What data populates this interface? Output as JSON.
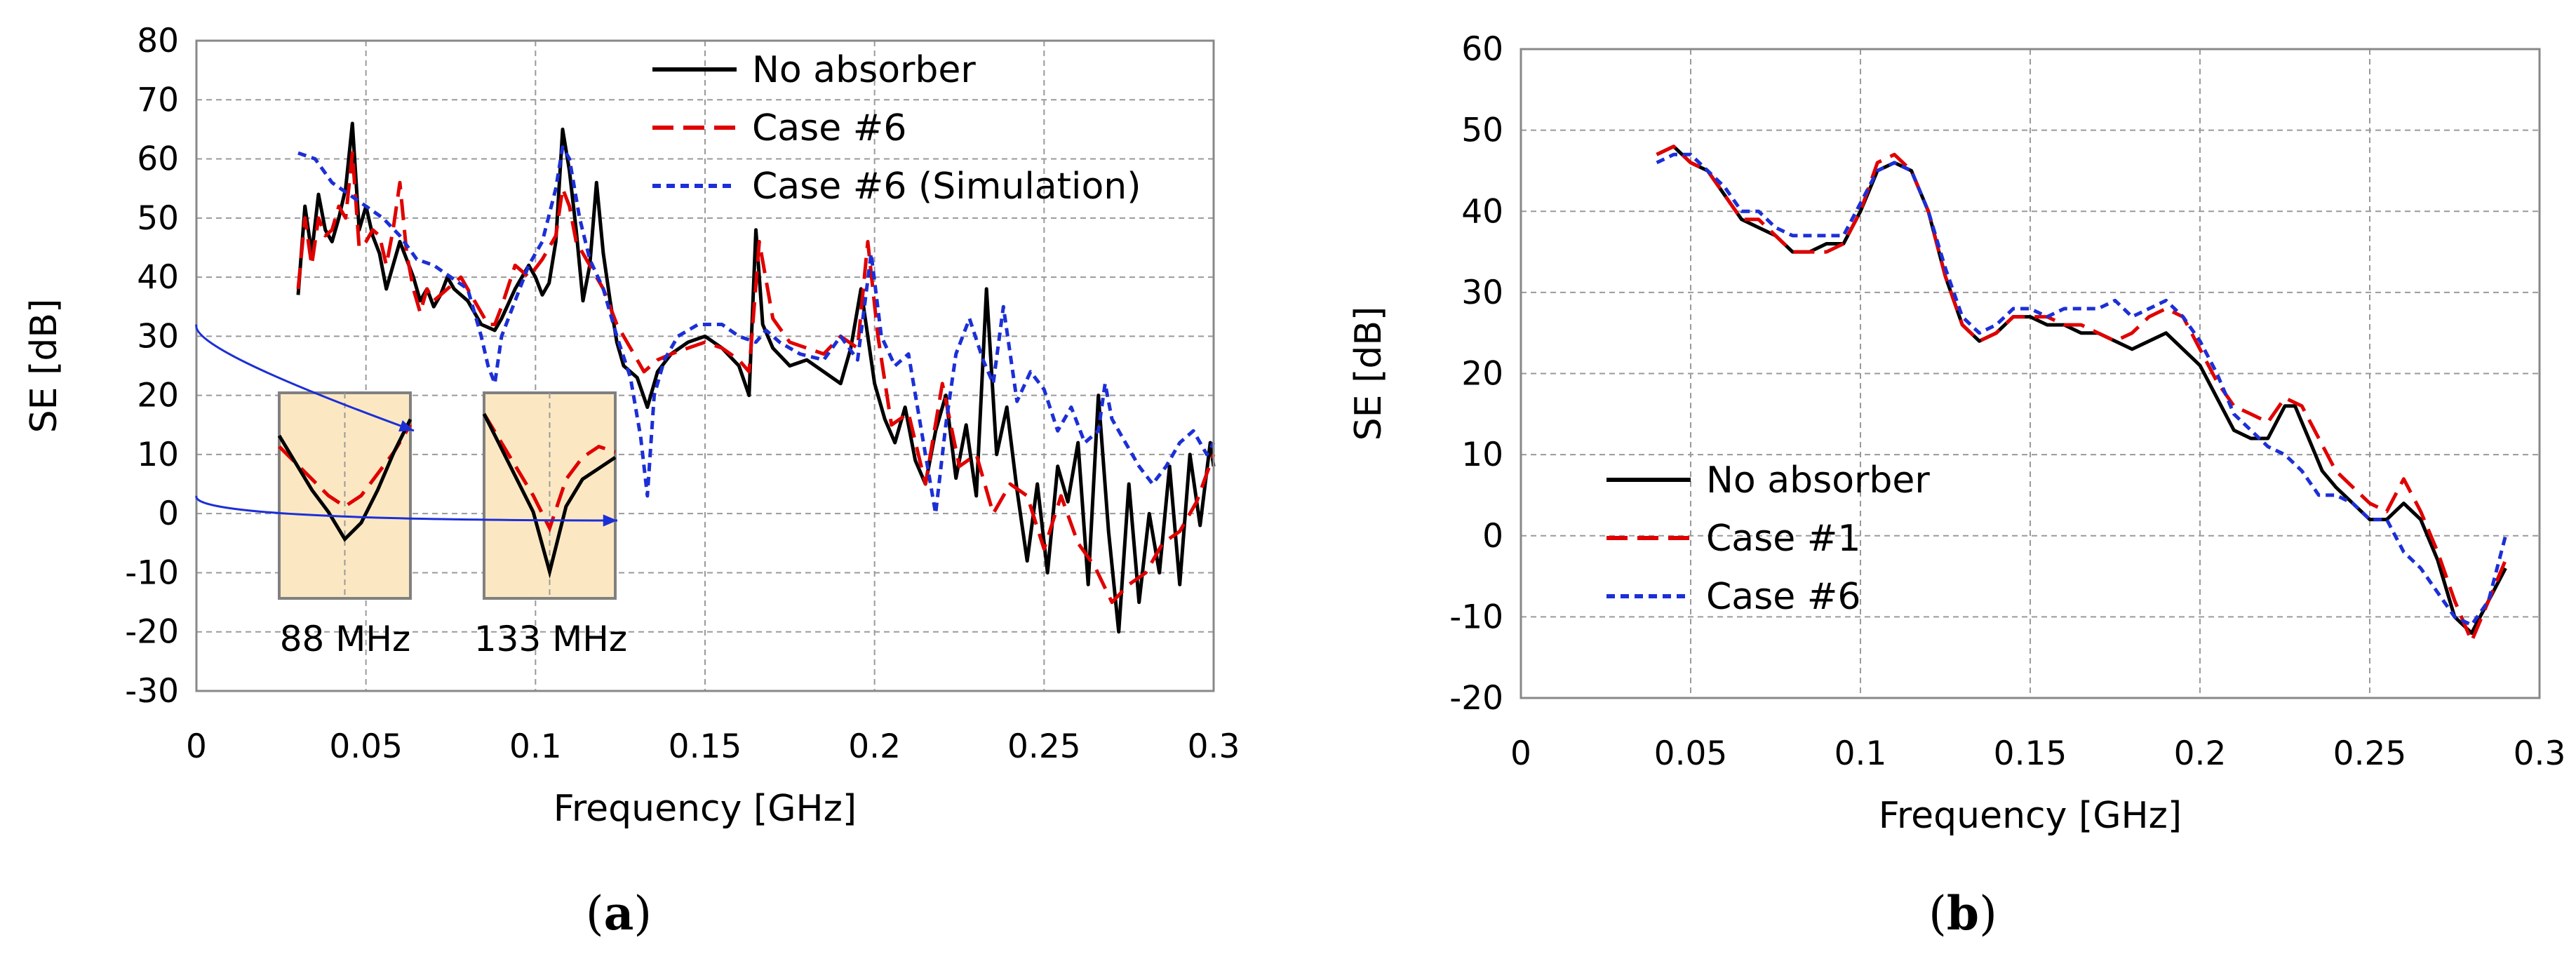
{
  "chart_data": [
    {
      "id": "a",
      "type": "line",
      "caption": {
        "open": "(",
        "letter": "a",
        "close": ")"
      },
      "xlabel": "Frequency [GHz]",
      "ylabel": "SE [dB]",
      "xlim": [
        0,
        0.3
      ],
      "ylim": [
        -30,
        80
      ],
      "xticks": [
        0,
        0.05,
        0.1,
        0.15,
        0.2,
        0.25,
        0.3
      ],
      "xtick_labels": [
        "0",
        "0.05",
        "0.1",
        "0.15",
        "0.2",
        "0.25",
        "0.3"
      ],
      "yticks": [
        -30,
        -20,
        -10,
        0,
        10,
        20,
        30,
        40,
        50,
        60,
        70,
        80
      ],
      "ytick_labels": [
        "-30",
        "-20",
        "-10",
        "0",
        "10",
        "20",
        "30",
        "40",
        "50",
        "60",
        "70",
        "80"
      ],
      "grid": true,
      "legend_position": "top-right",
      "series": [
        {
          "name": "No absorber",
          "color": "#000000",
          "style": "solid",
          "x": [
            0.03,
            0.032,
            0.034,
            0.036,
            0.038,
            0.04,
            0.042,
            0.044,
            0.046,
            0.048,
            0.05,
            0.052,
            0.054,
            0.056,
            0.058,
            0.06,
            0.062,
            0.064,
            0.066,
            0.068,
            0.07,
            0.072,
            0.074,
            0.076,
            0.078,
            0.08,
            0.084,
            0.088,
            0.09,
            0.094,
            0.098,
            0.1,
            0.102,
            0.104,
            0.106,
            0.108,
            0.11,
            0.112,
            0.114,
            0.116,
            0.118,
            0.12,
            0.122,
            0.124,
            0.126,
            0.13,
            0.133,
            0.136,
            0.14,
            0.145,
            0.15,
            0.155,
            0.16,
            0.163,
            0.165,
            0.167,
            0.17,
            0.175,
            0.18,
            0.185,
            0.19,
            0.193,
            0.196,
            0.2,
            0.203,
            0.206,
            0.209,
            0.212,
            0.215,
            0.218,
            0.221,
            0.224,
            0.227,
            0.23,
            0.233,
            0.236,
            0.239,
            0.242,
            0.245,
            0.248,
            0.251,
            0.254,
            0.257,
            0.26,
            0.263,
            0.266,
            0.269,
            0.272,
            0.275,
            0.278,
            0.281,
            0.284,
            0.287,
            0.29,
            0.293,
            0.296,
            0.299,
            0.3
          ],
          "y": [
            37,
            52,
            44,
            54,
            48,
            46,
            50,
            55,
            66,
            48,
            52,
            47,
            44,
            38,
            42,
            46,
            43,
            40,
            36,
            38,
            35,
            37,
            40,
            38,
            37,
            36,
            32,
            31,
            33,
            38,
            42,
            40,
            37,
            39,
            46,
            65,
            58,
            48,
            36,
            42,
            56,
            44,
            36,
            29,
            25,
            23,
            18,
            24,
            27,
            29,
            30,
            28,
            25,
            20,
            48,
            32,
            28,
            25,
            26,
            24,
            22,
            28,
            38,
            22,
            16,
            12,
            18,
            9,
            5,
            14,
            20,
            6,
            15,
            3,
            38,
            10,
            18,
            4,
            -8,
            5,
            -10,
            8,
            2,
            12,
            -12,
            20,
            -3,
            -20,
            5,
            -15,
            0,
            -10,
            8,
            -12,
            10,
            -2,
            12,
            8
          ]
        },
        {
          "name": "Case #6",
          "color": "#e00000",
          "style": "dashed",
          "x": [
            0.03,
            0.032,
            0.034,
            0.036,
            0.038,
            0.04,
            0.042,
            0.044,
            0.046,
            0.048,
            0.05,
            0.052,
            0.054,
            0.056,
            0.058,
            0.06,
            0.062,
            0.064,
            0.066,
            0.068,
            0.07,
            0.074,
            0.078,
            0.082,
            0.086,
            0.088,
            0.09,
            0.094,
            0.098,
            0.102,
            0.106,
            0.108,
            0.11,
            0.112,
            0.116,
            0.12,
            0.124,
            0.128,
            0.132,
            0.136,
            0.14,
            0.145,
            0.15,
            0.155,
            0.16,
            0.163,
            0.166,
            0.17,
            0.175,
            0.18,
            0.185,
            0.19,
            0.195,
            0.198,
            0.201,
            0.205,
            0.21,
            0.215,
            0.22,
            0.225,
            0.23,
            0.235,
            0.24,
            0.245,
            0.25,
            0.255,
            0.26,
            0.265,
            0.27,
            0.275,
            0.28,
            0.285,
            0.29,
            0.295,
            0.3
          ],
          "y": [
            38,
            50,
            42,
            50,
            47,
            48,
            52,
            50,
            61,
            45,
            46,
            48,
            47,
            42,
            48,
            56,
            44,
            38,
            34,
            38,
            36,
            38,
            40,
            36,
            32,
            32,
            35,
            42,
            40,
            43,
            47,
            55,
            52,
            46,
            42,
            38,
            32,
            28,
            24,
            26,
            27,
            28,
            29,
            28,
            26,
            24,
            46,
            33,
            29,
            28,
            27,
            30,
            28,
            46,
            30,
            15,
            17,
            5,
            22,
            8,
            10,
            0,
            5,
            3,
            -6,
            3,
            -5,
            -9,
            -15,
            -12,
            -10,
            -5,
            -3,
            2,
            10
          ]
        },
        {
          "name": "Case #6 (Simulation)",
          "color": "#1c2fd6",
          "style": "dotted",
          "x": [
            0.03,
            0.035,
            0.04,
            0.045,
            0.05,
            0.055,
            0.06,
            0.065,
            0.07,
            0.075,
            0.08,
            0.084,
            0.086,
            0.088,
            0.09,
            0.094,
            0.098,
            0.102,
            0.106,
            0.108,
            0.11,
            0.113,
            0.116,
            0.12,
            0.124,
            0.128,
            0.131,
            0.133,
            0.135,
            0.138,
            0.142,
            0.148,
            0.155,
            0.16,
            0.165,
            0.168,
            0.172,
            0.178,
            0.185,
            0.19,
            0.195,
            0.199,
            0.202,
            0.206,
            0.21,
            0.215,
            0.218,
            0.221,
            0.224,
            0.228,
            0.232,
            0.235,
            0.238,
            0.242,
            0.246,
            0.25,
            0.254,
            0.258,
            0.262,
            0.266,
            0.268,
            0.27,
            0.274,
            0.278,
            0.282,
            0.286,
            0.29,
            0.294,
            0.298,
            0.3
          ],
          "y": [
            61,
            60,
            56,
            54,
            52,
            50,
            47,
            43,
            42,
            40,
            38,
            30,
            25,
            22,
            30,
            36,
            42,
            46,
            55,
            62,
            60,
            50,
            43,
            38,
            30,
            23,
            13,
            3,
            20,
            26,
            30,
            32,
            32,
            30,
            29,
            31,
            29,
            27,
            26,
            30,
            26,
            44,
            30,
            25,
            27,
            10,
            0,
            15,
            27,
            33,
            26,
            22,
            35,
            19,
            24,
            21,
            14,
            18,
            12,
            14,
            22,
            16,
            12,
            8,
            5,
            8,
            12,
            14,
            10,
            12
          ]
        }
      ],
      "insets": [
        {
          "label": "88 MHz",
          "black_curve": [
            16,
            11,
            6,
            2,
            -3,
            0,
            6,
            13,
            19
          ],
          "red_curve": [
            14,
            11,
            8,
            5,
            3,
            5,
            9,
            13,
            18
          ]
        },
        {
          "label": "133 MHz",
          "black_curve": [
            20,
            14,
            8,
            2,
            -9,
            3,
            8,
            10,
            12
          ],
          "red_curve": [
            20,
            15,
            10,
            5,
            -1,
            8,
            12,
            14,
            13
          ]
        }
      ]
    },
    {
      "id": "b",
      "type": "line",
      "caption": {
        "open": "(",
        "letter": "b",
        "close": ")"
      },
      "xlabel": "Frequency [GHz]",
      "ylabel": "SE [dB]",
      "xlim": [
        0,
        0.3
      ],
      "ylim": [
        -20,
        60
      ],
      "xticks": [
        0,
        0.05,
        0.1,
        0.15,
        0.2,
        0.25,
        0.3
      ],
      "xtick_labels": [
        "0",
        "0.05",
        "0.1",
        "0.15",
        "0.2",
        "0.25",
        "0.3"
      ],
      "yticks": [
        -20,
        -10,
        0,
        10,
        20,
        30,
        40,
        50,
        60
      ],
      "ytick_labels": [
        "-20",
        "-10",
        "0",
        "10",
        "20",
        "30",
        "40",
        "50",
        "60"
      ],
      "grid": true,
      "legend_position": "bottom-left",
      "series": [
        {
          "name": "No absorber",
          "color": "#000000",
          "style": "solid",
          "x": [
            0.04,
            0.045,
            0.05,
            0.055,
            0.06,
            0.065,
            0.07,
            0.075,
            0.08,
            0.085,
            0.09,
            0.095,
            0.1,
            0.105,
            0.11,
            0.115,
            0.12,
            0.125,
            0.13,
            0.135,
            0.14,
            0.145,
            0.15,
            0.155,
            0.16,
            0.165,
            0.17,
            0.175,
            0.18,
            0.185,
            0.19,
            0.195,
            0.2,
            0.205,
            0.21,
            0.215,
            0.22,
            0.225,
            0.228,
            0.232,
            0.236,
            0.24,
            0.245,
            0.25,
            0.255,
            0.26,
            0.265,
            0.27,
            0.275,
            0.28,
            0.285,
            0.29
          ],
          "y": [
            47,
            48,
            46,
            45,
            42,
            39,
            38,
            37,
            35,
            35,
            36,
            36,
            40,
            45,
            46,
            45,
            40,
            32,
            26,
            24,
            25,
            27,
            27,
            26,
            26,
            25,
            25,
            24,
            23,
            24,
            25,
            23,
            21,
            17,
            13,
            12,
            12,
            16,
            16,
            12,
            8,
            6,
            4,
            2,
            2,
            4,
            2,
            -3,
            -10,
            -12,
            -8,
            -4
          ]
        },
        {
          "name": "Case #1",
          "color": "#e00000",
          "style": "dashed",
          "x": [
            0.04,
            0.045,
            0.05,
            0.055,
            0.06,
            0.065,
            0.07,
            0.075,
            0.08,
            0.085,
            0.09,
            0.095,
            0.1,
            0.105,
            0.11,
            0.115,
            0.12,
            0.125,
            0.13,
            0.135,
            0.14,
            0.145,
            0.15,
            0.155,
            0.16,
            0.165,
            0.17,
            0.175,
            0.18,
            0.185,
            0.19,
            0.195,
            0.2,
            0.205,
            0.21,
            0.215,
            0.22,
            0.225,
            0.23,
            0.235,
            0.24,
            0.245,
            0.25,
            0.255,
            0.26,
            0.265,
            0.27,
            0.275,
            0.28,
            0.285,
            0.29
          ],
          "y": [
            47,
            48,
            46,
            45,
            42,
            39,
            39,
            37,
            35,
            35,
            35,
            36,
            40,
            46,
            47,
            45,
            40,
            32,
            26,
            24,
            25,
            27,
            27,
            27,
            26,
            26,
            25,
            24,
            25,
            27,
            28,
            27,
            23,
            19,
            16,
            15,
            14,
            17,
            16,
            12,
            8,
            6,
            4,
            3,
            7,
            3,
            -2,
            -8,
            -13,
            -8,
            -3
          ]
        },
        {
          "name": "Case #6",
          "color": "#1c2fd6",
          "style": "dotted",
          "x": [
            0.04,
            0.045,
            0.05,
            0.055,
            0.06,
            0.065,
            0.07,
            0.075,
            0.08,
            0.085,
            0.09,
            0.095,
            0.1,
            0.105,
            0.11,
            0.115,
            0.12,
            0.125,
            0.13,
            0.135,
            0.14,
            0.145,
            0.15,
            0.155,
            0.16,
            0.165,
            0.17,
            0.175,
            0.18,
            0.185,
            0.19,
            0.195,
            0.2,
            0.205,
            0.21,
            0.215,
            0.22,
            0.225,
            0.23,
            0.235,
            0.24,
            0.245,
            0.25,
            0.255,
            0.26,
            0.265,
            0.27,
            0.275,
            0.28,
            0.285,
            0.29
          ],
          "y": [
            46,
            47,
            47,
            45,
            43,
            40,
            40,
            38,
            37,
            37,
            37,
            37,
            41,
            45,
            46,
            45,
            40,
            33,
            27,
            25,
            26,
            28,
            28,
            27,
            28,
            28,
            28,
            29,
            27,
            28,
            29,
            27,
            24,
            20,
            15,
            13,
            11,
            10,
            8,
            5,
            5,
            4,
            2,
            2,
            -2,
            -4,
            -7,
            -10,
            -11,
            -8,
            0
          ]
        }
      ]
    }
  ]
}
